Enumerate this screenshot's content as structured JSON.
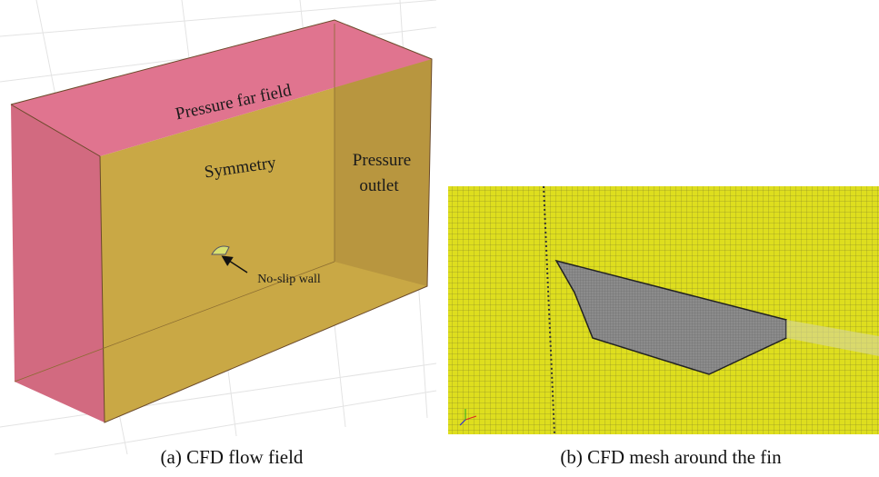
{
  "panels": [
    {
      "labels": [
        "Pressure far field",
        "Symmetry",
        "Pressure",
        "outlet",
        "No-slip wall"
      ],
      "caption": "(a) CFD flow field"
    },
    {
      "caption": "(b) CFD mesh around the fin"
    }
  ]
}
